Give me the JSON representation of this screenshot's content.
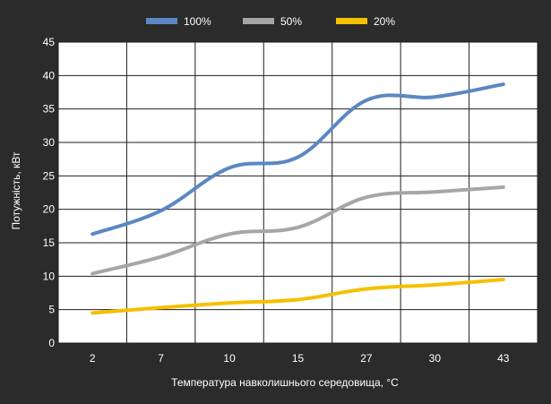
{
  "chart_data": {
    "type": "line",
    "categories": [
      "2",
      "7",
      "10",
      "15",
      "27",
      "30",
      "43"
    ],
    "series": [
      {
        "name": "100%",
        "color": "#5b87c4",
        "values": [
          16.3,
          19.8,
          26.2,
          27.8,
          36.3,
          36.8,
          38.7
        ]
      },
      {
        "name": "50%",
        "color": "#a6a6a6",
        "values": [
          10.4,
          12.9,
          16.3,
          17.3,
          21.8,
          22.6,
          23.3
        ]
      },
      {
        "name": "20%",
        "color": "#f5c000",
        "values": [
          4.5,
          5.3,
          6.0,
          6.5,
          8.1,
          8.7,
          9.5
        ]
      }
    ],
    "title": "",
    "xlabel": "Температура навколишнього середовища, °C",
    "ylabel": "Потужність, кВт",
    "ylim": [
      0,
      45
    ],
    "yticks": [
      0,
      5,
      10,
      15,
      20,
      25,
      30,
      35,
      40,
      45
    ],
    "grid": true,
    "legend_position": "top"
  }
}
